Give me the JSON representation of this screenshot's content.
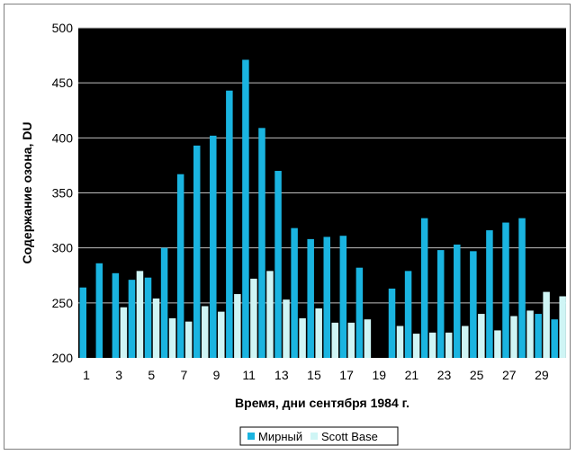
{
  "chart_data": {
    "type": "bar",
    "title": "",
    "xlabel": "Время, дни сентября 1984 г.",
    "ylabel": "Содержание озона, DU",
    "ylim": [
      200,
      500
    ],
    "yticks": [
      200,
      250,
      300,
      350,
      400,
      450,
      500
    ],
    "x_tick_labels": [
      "1",
      "3",
      "5",
      "7",
      "9",
      "11",
      "13",
      "15",
      "17",
      "19",
      "21",
      "23",
      "25",
      "27",
      "29"
    ],
    "x_tick_values": [
      1,
      3,
      5,
      7,
      9,
      11,
      13,
      15,
      17,
      19,
      21,
      23,
      25,
      27,
      29
    ],
    "grid": true,
    "legend_position": "bottom",
    "background": "#000000",
    "categories": [
      1,
      2,
      3,
      4,
      5,
      6,
      7,
      8,
      9,
      10,
      11,
      12,
      13,
      14,
      15,
      16,
      17,
      18,
      19,
      20,
      21,
      22,
      23,
      24,
      25,
      26,
      27,
      28,
      29,
      30
    ],
    "series": [
      {
        "name": "Мирный",
        "color": "#1ab4e0",
        "values": [
          264,
          286,
          277,
          271,
          273,
          300,
          367,
          393,
          402,
          443,
          471,
          409,
          370,
          318,
          308,
          310,
          311,
          282,
          null,
          263,
          279,
          327,
          298,
          303,
          297,
          316,
          323,
          327,
          240,
          235
        ]
      },
      {
        "name": "Scott Base",
        "color": "#cff5f5",
        "values": [
          null,
          null,
          246,
          279,
          254,
          236,
          233,
          247,
          242,
          258,
          272,
          279,
          253,
          236,
          245,
          232,
          232,
          235,
          null,
          229,
          222,
          223,
          223,
          229,
          240,
          225,
          238,
          243,
          260,
          256
        ]
      }
    ]
  }
}
